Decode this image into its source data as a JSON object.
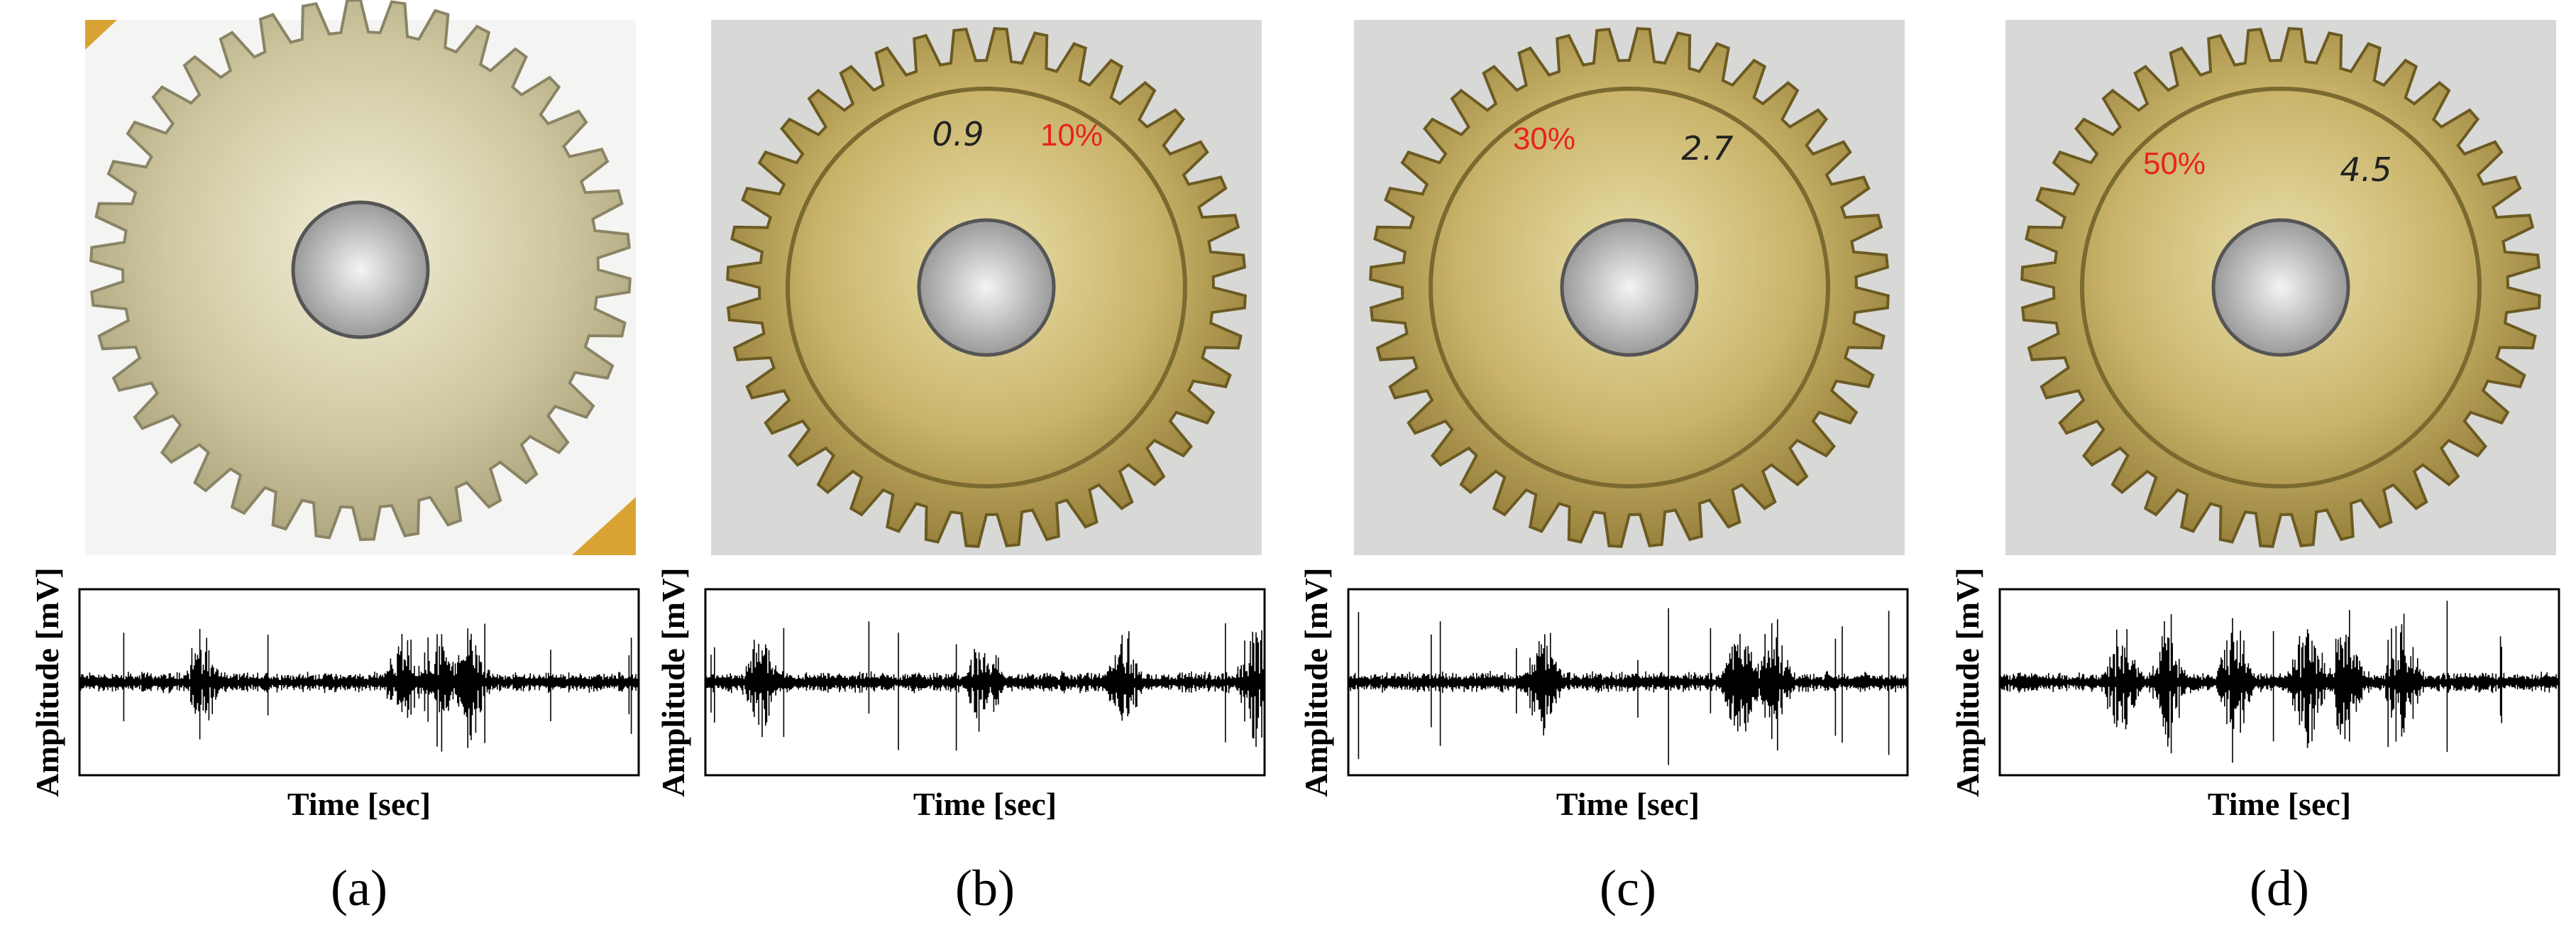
{
  "panels": [
    {
      "label": "(a)",
      "y_axis_label": "Amplitude [mV]",
      "x_axis_label": "Time [sec]"
    },
    {
      "label": "(b)",
      "damage": "10%",
      "handwriting": "0.9",
      "y_axis_label": "Amplitude [mV]",
      "x_axis_label": "Time [sec]"
    },
    {
      "label": "(c)",
      "damage": "30%",
      "handwriting": "2.7",
      "y_axis_label": "Amplitude [mV]",
      "x_axis_label": "Time [sec]"
    },
    {
      "label": "(d)",
      "damage": "50%",
      "handwriting": "4.5",
      "y_axis_label": "Amplitude [mV]",
      "x_axis_label": "Time [sec]"
    }
  ]
}
